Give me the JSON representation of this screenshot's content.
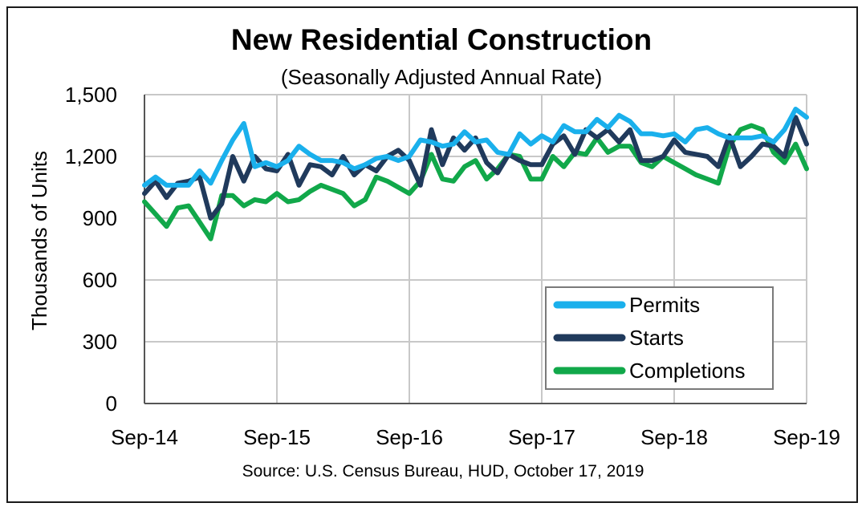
{
  "chart_data": {
    "type": "line",
    "title": "New Residential Construction",
    "subtitle": "(Seasonally Adjusted Annual Rate)",
    "ylabel": "Thousands of Units",
    "xlabel": "",
    "source": "Source:  U.S. Census Bureau, HUD, October 17, 2019",
    "ylim": [
      0,
      1500
    ],
    "yticks": [
      "0",
      "300",
      "600",
      "900",
      "1,200",
      "1,500"
    ],
    "ytick_values": [
      0,
      300,
      600,
      900,
      1200,
      1500
    ],
    "xticks": [
      "Sep-14",
      "Sep-15",
      "Sep-16",
      "Sep-17",
      "Sep-18",
      "Sep-19"
    ],
    "xtick_index": [
      0,
      12,
      24,
      36,
      48,
      60
    ],
    "grid": true,
    "legend_position": "bottom-right",
    "x": [
      "Sep-14",
      "Oct-14",
      "Nov-14",
      "Dec-14",
      "Jan-15",
      "Feb-15",
      "Mar-15",
      "Apr-15",
      "May-15",
      "Jun-15",
      "Jul-15",
      "Aug-15",
      "Sep-15",
      "Oct-15",
      "Nov-15",
      "Dec-15",
      "Jan-16",
      "Feb-16",
      "Mar-16",
      "Apr-16",
      "May-16",
      "Jun-16",
      "Jul-16",
      "Aug-16",
      "Sep-16",
      "Oct-16",
      "Nov-16",
      "Dec-16",
      "Jan-17",
      "Feb-17",
      "Mar-17",
      "Apr-17",
      "May-17",
      "Jun-17",
      "Jul-17",
      "Aug-17",
      "Sep-17",
      "Oct-17",
      "Nov-17",
      "Dec-17",
      "Jan-18",
      "Feb-18",
      "Mar-18",
      "Apr-18",
      "May-18",
      "Jun-18",
      "Jul-18",
      "Aug-18",
      "Sep-18",
      "Oct-18",
      "Nov-18",
      "Dec-18",
      "Jan-19",
      "Feb-19",
      "Mar-19",
      "Apr-19",
      "May-19",
      "Jun-19",
      "Jul-19",
      "Aug-19",
      "Sep-19"
    ],
    "series": [
      {
        "name": "Permits",
        "color": "#1ab0ec",
        "values": [
          1060,
          1100,
          1060,
          1060,
          1060,
          1130,
          1070,
          1180,
          1280,
          1360,
          1150,
          1170,
          1150,
          1180,
          1250,
          1210,
          1180,
          1180,
          1170,
          1140,
          1160,
          1190,
          1200,
          1180,
          1200,
          1280,
          1270,
          1250,
          1260,
          1320,
          1270,
          1280,
          1220,
          1210,
          1310,
          1260,
          1300,
          1270,
          1350,
          1320,
          1320,
          1380,
          1340,
          1400,
          1370,
          1310,
          1310,
          1300,
          1310,
          1270,
          1330,
          1340,
          1310,
          1290,
          1290,
          1290,
          1300,
          1270,
          1330,
          1430,
          1390
        ]
      },
      {
        "name": "Starts",
        "color": "#203a5c",
        "values": [
          1020,
          1080,
          1000,
          1070,
          1080,
          1100,
          900,
          970,
          1200,
          1080,
          1200,
          1140,
          1130,
          1210,
          1060,
          1160,
          1150,
          1110,
          1200,
          1110,
          1160,
          1130,
          1200,
          1230,
          1180,
          1060,
          1330,
          1160,
          1290,
          1230,
          1290,
          1170,
          1120,
          1210,
          1180,
          1160,
          1160,
          1260,
          1300,
          1210,
          1330,
          1290,
          1330,
          1270,
          1330,
          1180,
          1180,
          1200,
          1280,
          1220,
          1210,
          1200,
          1150,
          1300,
          1150,
          1200,
          1260,
          1250,
          1200,
          1390,
          1260
        ]
      },
      {
        "name": "Completions",
        "color": "#11a84a",
        "values": [
          980,
          920,
          860,
          950,
          960,
          880,
          800,
          1010,
          1010,
          960,
          990,
          980,
          1020,
          980,
          990,
          1030,
          1060,
          1040,
          1020,
          960,
          990,
          1100,
          1080,
          1050,
          1020,
          1080,
          1210,
          1090,
          1080,
          1150,
          1180,
          1090,
          1140,
          1210,
          1200,
          1090,
          1090,
          1200,
          1150,
          1220,
          1210,
          1290,
          1220,
          1250,
          1250,
          1170,
          1150,
          1200,
          1170,
          1140,
          1110,
          1090,
          1070,
          1250,
          1330,
          1350,
          1330,
          1220,
          1170,
          1260,
          1140
        ]
      }
    ]
  }
}
